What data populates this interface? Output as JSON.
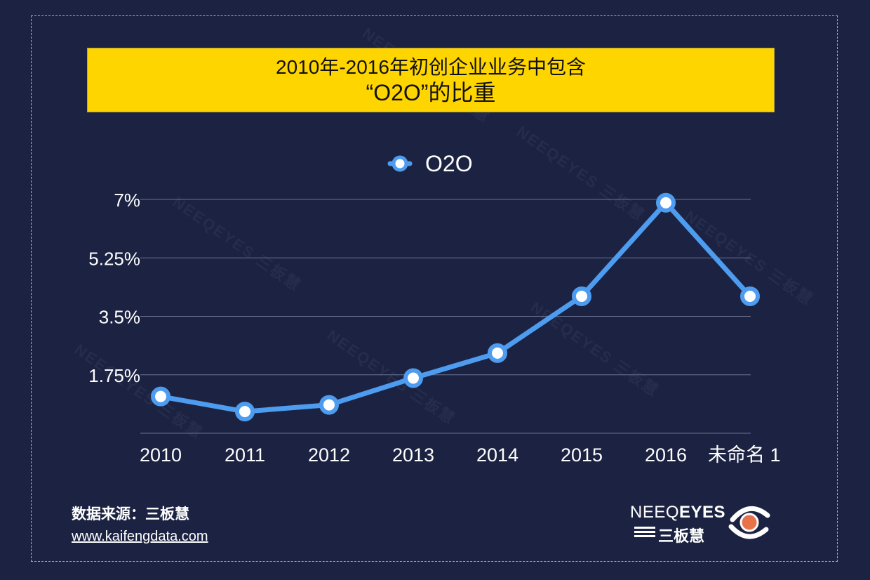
{
  "title_line1": "2010年-2016年初创企业业务中包含",
  "title_line2": "“O2O”的比重",
  "source_label": "数据来源：三板慧",
  "source_url": "www.kaifengdata.com",
  "brand": {
    "name_prefix": "NEEQ",
    "name_accent": "EYES",
    "name_cn": "三板慧",
    "logo_icon": "eye-logo-icon",
    "accent_color": "#e8734a"
  },
  "watermark_text": "NEEQEYES 三板慧",
  "colors": {
    "background": "#1c2342",
    "title_bg": "#ffd500",
    "series": "#4d9cf0",
    "grid": "#6b7190",
    "text": "#ffffff"
  },
  "chart_data": {
    "type": "line",
    "categories": [
      "2010",
      "2011",
      "2012",
      "2013",
      "2014",
      "2015",
      "2016",
      "未命名 1"
    ],
    "series": [
      {
        "name": "O2O",
        "values": [
          1.1,
          0.65,
          0.85,
          1.65,
          2.4,
          4.1,
          6.9,
          4.1
        ]
      }
    ],
    "ylim": [
      0,
      7
    ],
    "yticks": [
      1.75,
      3.5,
      5.25,
      7
    ],
    "ytick_labels": [
      "1.75%",
      "3.5%",
      "5.25%",
      "7%"
    ],
    "grid": true,
    "legend": "top-center"
  }
}
